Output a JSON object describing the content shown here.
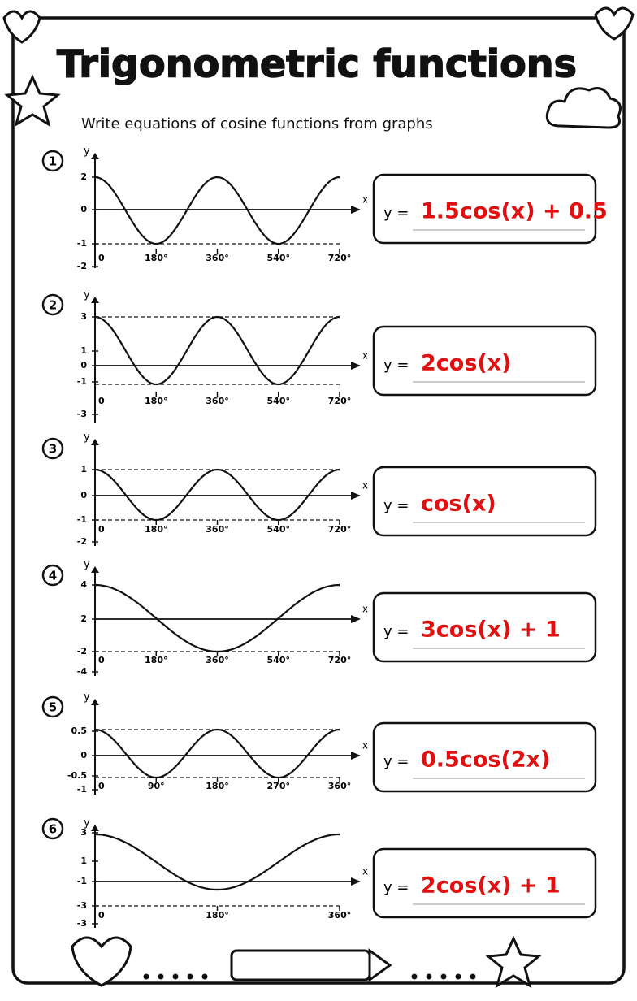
{
  "header": {
    "title": "Trigonometric functions",
    "instruction": "Write equations of cosine functions from graphs"
  },
  "problems": [
    {
      "number": "1",
      "y_label": "y",
      "x_label": "x",
      "y_ticks": [
        "2",
        "0",
        "-1",
        "-2"
      ],
      "x_ticks": [
        "0",
        "180°",
        "360°",
        "540°",
        "720°"
      ],
      "answer_prefix": "y =",
      "answer": "1.5cos(x) + 0.5"
    },
    {
      "number": "2",
      "y_label": "y",
      "x_label": "x",
      "y_ticks": [
        "3",
        "1",
        "0",
        "-1",
        "-3"
      ],
      "x_ticks": [
        "0",
        "180°",
        "360°",
        "540°",
        "720°"
      ],
      "answer_prefix": "y =",
      "answer": "2cos(x)"
    },
    {
      "number": "3",
      "y_label": "y",
      "x_label": "x",
      "y_ticks": [
        "1",
        "0",
        "-1",
        "-2"
      ],
      "x_ticks": [
        "0",
        "180°",
        "360°",
        "540°",
        "720°"
      ],
      "answer_prefix": "y =",
      "answer": "cos(x)"
    },
    {
      "number": "4",
      "y_label": "y",
      "x_label": "x",
      "y_ticks": [
        "4",
        "2",
        "-2",
        "-4"
      ],
      "x_ticks": [
        "0",
        "180°",
        "360°",
        "540°",
        "720°"
      ],
      "answer_prefix": "y =",
      "answer": "3cos(x) + 1"
    },
    {
      "number": "5",
      "y_label": "y",
      "x_label": "x",
      "y_ticks": [
        "0.5",
        "0",
        "-0.5",
        "-1"
      ],
      "x_ticks": [
        "0",
        "90°",
        "180°",
        "270°",
        "360°"
      ],
      "answer_prefix": "y =",
      "answer": "0.5cos(2x)"
    },
    {
      "number": "6",
      "y_label": "y",
      "x_label": "x",
      "y_ticks": [
        "3",
        "1",
        "-1",
        "-3",
        "-3"
      ],
      "x_ticks": [
        "0",
        "180°",
        "360°"
      ],
      "answer_prefix": "y =",
      "answer": "2cos(x) + 1"
    }
  ]
}
